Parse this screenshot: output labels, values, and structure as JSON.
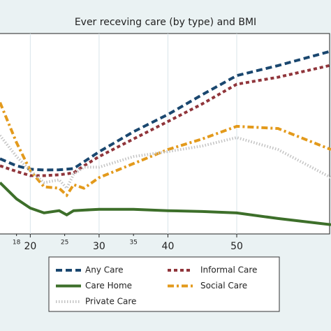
{
  "chart_data": {
    "type": "line",
    "title": "Ever receving care (by type) and BMI",
    "x": [
      15.6,
      18,
      20,
      22,
      24.2,
      25.3,
      26.3,
      27.8,
      30,
      35,
      40,
      45,
      50,
      56,
      63.7
    ],
    "series": [
      {
        "name": "Any Care",
        "color": "#1a476f",
        "style": "dash",
        "values": [
          37.5,
          34,
          32.3,
          31.9,
          32,
          32.3,
          32.6,
          36,
          41,
          51,
          59.6,
          69.5,
          79,
          84,
          91.2
        ]
      },
      {
        "name": "Informal Care",
        "color": "#90353b",
        "style": "shortdash",
        "values": [
          34,
          31.2,
          29.1,
          29.1,
          29.5,
          30,
          30.5,
          34,
          38.6,
          47.4,
          56.1,
          64.9,
          74.7,
          78.2,
          84.2
        ]
      },
      {
        "name": "Care Home",
        "color": "#3d6f2a",
        "style": "solid",
        "values": [
          25.6,
          17.5,
          12.9,
          10.5,
          11.6,
          9.5,
          11.6,
          11.9,
          12.3,
          12.3,
          11.6,
          11.2,
          10.5,
          7.7,
          4.6
        ]
      },
      {
        "name": "Social Care",
        "color": "#e39a1c",
        "style": "dashdot",
        "values": [
          65.6,
          45.6,
          31.6,
          23.5,
          22.8,
          19.3,
          24.6,
          22.8,
          28.1,
          35.1,
          42.1,
          47.4,
          53.7,
          52.6,
          42.1
        ]
      },
      {
        "name": "Private Care",
        "color": "#c4c4c4",
        "style": "dot",
        "values": [
          49.1,
          38.6,
          31.6,
          25.6,
          27,
          22.8,
          29.8,
          33.3,
          33.3,
          38.6,
          41.1,
          43.9,
          48.1,
          42.1,
          28.1
        ]
      }
    ],
    "xlim": [
      15.6,
      63.7
    ],
    "xticks": [
      20,
      30,
      40,
      50
    ],
    "xticks_minor": [
      18,
      25,
      35
    ],
    "ylim": [
      0,
      100
    ],
    "grid": true
  }
}
